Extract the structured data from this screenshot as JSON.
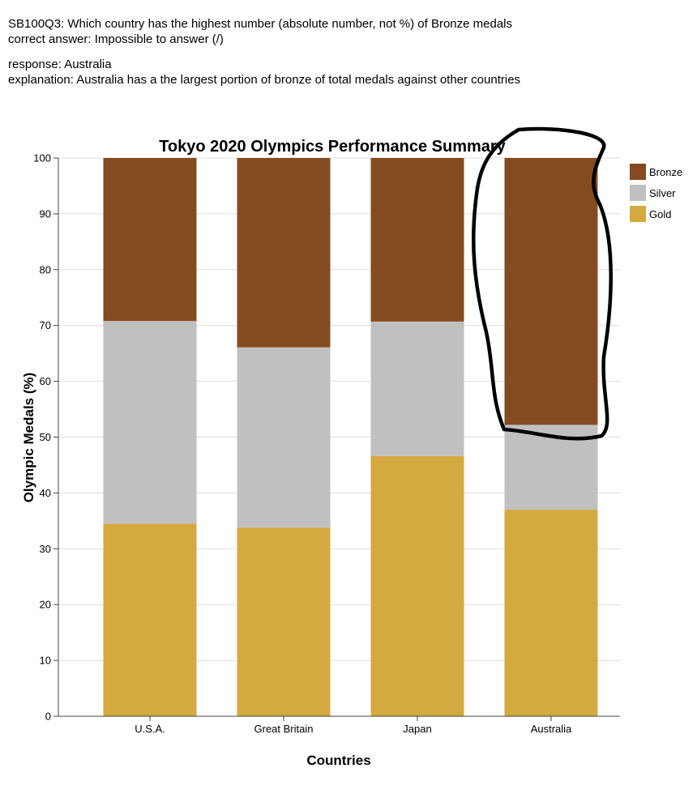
{
  "annotation": {
    "question": "SB100Q3: Which country has the highest number (absolute number, not %)  of Bronze medals",
    "correct_answer": "correct answer: Impossible to answer (/)",
    "response": "response: Australia",
    "explanation": "explanation: Australia has a the largest portion of bronze of total medals against other countries"
  },
  "chart_data": {
    "type": "bar",
    "stacked": true,
    "title": "Tokyo 2020 Olympics Performance Summary",
    "xlabel": "Countries",
    "ylabel": "Olympic Medals (%)",
    "ylim": [
      0,
      100
    ],
    "yticks": [
      "0",
      "10",
      "20",
      "30",
      "40",
      "50",
      "60",
      "70",
      "80",
      "90",
      "100"
    ],
    "grid": true,
    "legend_position": "top-right",
    "categories": [
      "U.S.A.",
      "Great Britain",
      "Japan",
      "Australia"
    ],
    "series": [
      {
        "name": "Gold",
        "color": "#d4a940",
        "values": [
          34.5,
          33.8,
          46.6,
          37.0
        ]
      },
      {
        "name": "Silver",
        "color": "#c0c0c0",
        "values": [
          36.3,
          32.3,
          24.1,
          15.2
        ]
      },
      {
        "name": "Bronze",
        "color": "#844b21",
        "values": [
          29.2,
          33.9,
          29.3,
          47.8
        ]
      }
    ],
    "legend_order": [
      "Bronze",
      "Silver",
      "Gold"
    ],
    "highlight": {
      "category": "Australia",
      "segment": "Bronze",
      "style": "hand-drawn black circle"
    }
  }
}
